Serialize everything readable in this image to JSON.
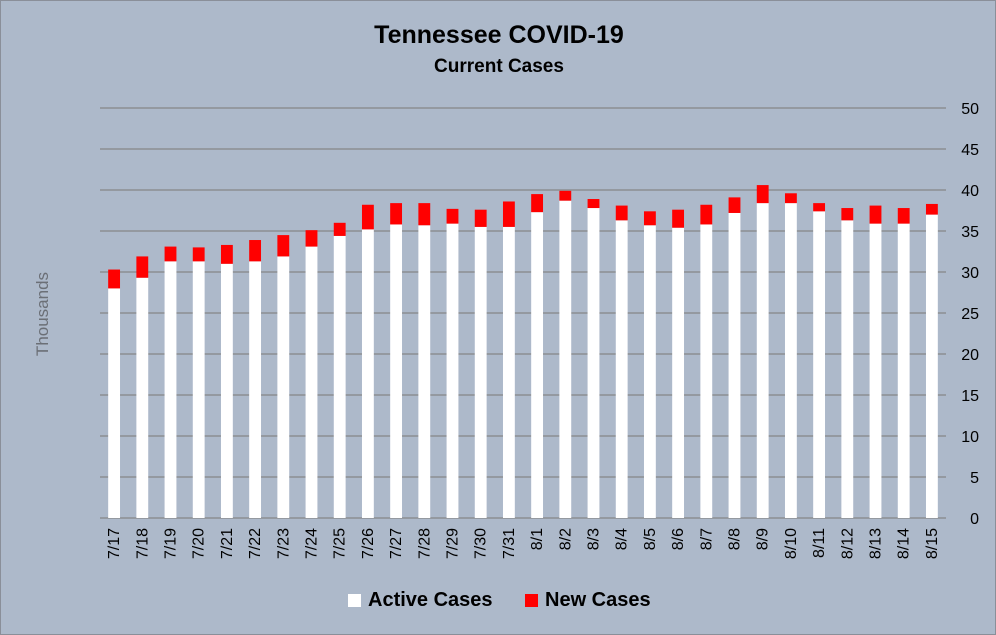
{
  "chart_data": {
    "type": "bar",
    "stacked": true,
    "title": "Tennessee COVID-19",
    "subtitle": "Current Cases",
    "ylabel": "Thousands",
    "xlabel": "",
    "ylim": [
      0,
      50
    ],
    "yticks": [
      0,
      5,
      10,
      15,
      20,
      25,
      30,
      35,
      40,
      45,
      50
    ],
    "y_axis_side": "right",
    "grid": true,
    "legend_position": "bottom",
    "categories": [
      "7/17",
      "7/18",
      "7/19",
      "7/20",
      "7/21",
      "7/22",
      "7/23",
      "7/24",
      "7/25",
      "7/26",
      "7/27",
      "7/28",
      "7/29",
      "7/30",
      "7/31",
      "8/1",
      "8/2",
      "8/3",
      "8/4",
      "8/5",
      "8/6",
      "8/7",
      "8/8",
      "8/9",
      "8/10",
      "8/11",
      "8/12",
      "8/13",
      "8/14",
      "8/15"
    ],
    "series": [
      {
        "name": "Active Cases",
        "color": "#ffffff",
        "values": [
          28.0,
          29.3,
          31.3,
          31.3,
          31.0,
          31.3,
          31.9,
          33.1,
          34.4,
          35.2,
          35.8,
          35.7,
          35.9,
          35.5,
          35.5,
          37.3,
          38.7,
          37.8,
          36.3,
          35.7,
          35.4,
          35.8,
          37.2,
          38.4,
          38.4,
          37.4,
          36.3,
          35.9,
          35.9,
          37.0
        ]
      },
      {
        "name": "New Cases",
        "color": "#ff0000",
        "values": [
          2.3,
          2.6,
          1.8,
          1.7,
          2.3,
          2.6,
          2.6,
          2.0,
          1.6,
          3.0,
          2.6,
          2.7,
          1.8,
          2.1,
          3.1,
          2.2,
          1.2,
          1.1,
          1.8,
          1.7,
          2.2,
          2.4,
          1.9,
          2.2,
          1.2,
          1.0,
          1.5,
          2.2,
          1.9,
          1.3
        ]
      }
    ]
  }
}
